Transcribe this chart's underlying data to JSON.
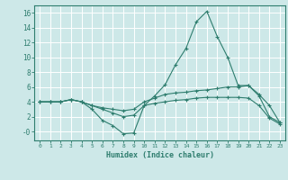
{
  "background_color": "#cde8e8",
  "grid_color": "#ffffff",
  "line_color": "#2e7d6e",
  "marker": "+",
  "xlabel": "Humidex (Indice chaleur)",
  "ylim": [
    -1.2,
    17
  ],
  "xlim": [
    -0.5,
    23.5
  ],
  "yticks": [
    0,
    2,
    4,
    6,
    8,
    10,
    12,
    14,
    16
  ],
  "ytick_labels": [
    "-0",
    "2",
    "4",
    "6",
    "8",
    "10",
    "12",
    "14",
    "16"
  ],
  "xticks": [
    0,
    1,
    2,
    3,
    4,
    5,
    6,
    7,
    8,
    9,
    10,
    11,
    12,
    13,
    14,
    15,
    16,
    17,
    18,
    19,
    20,
    21,
    22,
    23
  ],
  "lines": [
    {
      "x": [
        0,
        1,
        2,
        3,
        4,
        5,
        6,
        7,
        8,
        9,
        10,
        11,
        12,
        13,
        14,
        15,
        16,
        17,
        18,
        19,
        20,
        21,
        22,
        23
      ],
      "y": [
        4.0,
        4.0,
        4.0,
        4.3,
        4.0,
        3.0,
        1.5,
        0.8,
        -0.3,
        -0.2,
        3.5,
        4.8,
        6.3,
        9.0,
        11.2,
        14.8,
        16.2,
        12.8,
        10.0,
        6.2,
        6.2,
        5.0,
        3.5,
        1.2
      ]
    },
    {
      "x": [
        0,
        1,
        2,
        3,
        4,
        5,
        6,
        7,
        8,
        9,
        10,
        11,
        12,
        13,
        14,
        15,
        16,
        17,
        18,
        19,
        20,
        21,
        22,
        23
      ],
      "y": [
        4.0,
        4.0,
        4.0,
        4.3,
        4.0,
        3.5,
        3.2,
        3.0,
        2.8,
        3.0,
        4.0,
        4.5,
        5.0,
        5.2,
        5.3,
        5.5,
        5.6,
        5.8,
        6.0,
        6.0,
        6.2,
        4.8,
        2.0,
        1.2
      ]
    },
    {
      "x": [
        0,
        1,
        2,
        3,
        4,
        5,
        6,
        7,
        8,
        9,
        10,
        11,
        12,
        13,
        14,
        15,
        16,
        17,
        18,
        19,
        20,
        21,
        22,
        23
      ],
      "y": [
        4.0,
        4.0,
        4.0,
        4.3,
        4.0,
        3.5,
        3.0,
        2.5,
        2.0,
        2.2,
        3.5,
        3.8,
        4.0,
        4.2,
        4.3,
        4.5,
        4.6,
        4.6,
        4.6,
        4.6,
        4.5,
        3.5,
        1.8,
        1.0
      ]
    }
  ]
}
